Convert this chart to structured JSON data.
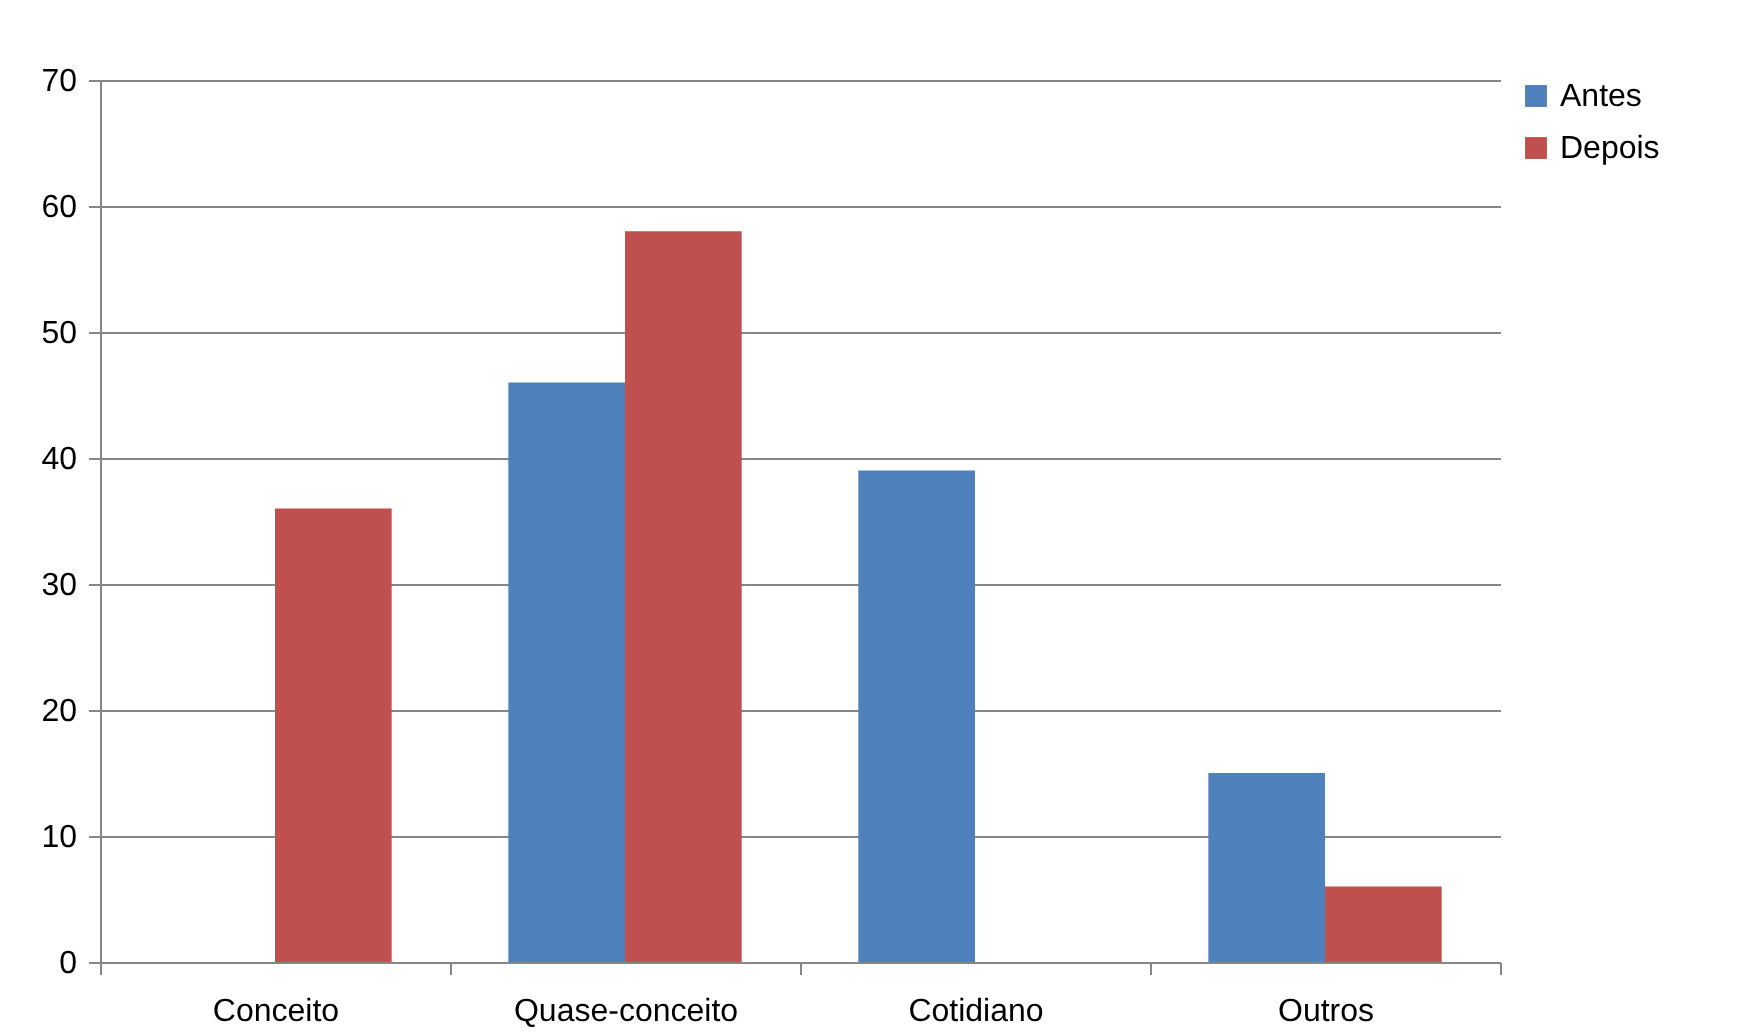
{
  "chart_data": {
    "type": "bar",
    "categories": [
      "Conceito",
      "Quase-conceito",
      "Cotidiano",
      "Outros"
    ],
    "series": [
      {
        "name": "Antes",
        "color": "#4f81bd",
        "values": [
          0,
          46,
          39,
          15
        ]
      },
      {
        "name": "Depois",
        "color": "#c0504d",
        "values": [
          36,
          58,
          0,
          6
        ]
      }
    ],
    "ylim": [
      0,
      70
    ],
    "yticks": [
      0,
      10,
      20,
      30,
      40,
      50,
      60,
      70
    ],
    "grid": "y",
    "legend": "right"
  }
}
